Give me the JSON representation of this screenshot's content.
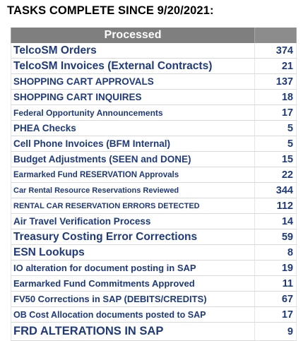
{
  "heading": "TASKS COMPLETE SINCE 9/20/2021:",
  "table": {
    "header": "Processed",
    "rows": [
      {
        "task": "TelcoSM Orders",
        "count": "374"
      },
      {
        "task": "TelcoSM Invoices (External Contracts)",
        "count": "21"
      },
      {
        "task": "SHOPPING CART APPROVALS",
        "count": "137"
      },
      {
        "task": "SHOPPING CART INQUIRES",
        "count": "18"
      },
      {
        "task": "Federal Opportunity Announcements",
        "count": "17"
      },
      {
        "task": "PHEA Checks",
        "count": "5"
      },
      {
        "task": "Cell Phone Invoices (BFM Internal)",
        "count": "5"
      },
      {
        "task": "Budget Adjustments (SEEN and DONE)",
        "count": "15"
      },
      {
        "task": "Earmarked Fund RESERVATION Approvals",
        "count": "22"
      },
      {
        "task": "Car Rental Resource Reservations Reviewed",
        "count": "344"
      },
      {
        "task": "RENTAL CAR RESERVATION ERRORS DETECTED",
        "count": "112"
      },
      {
        "task": "Air Travel Verification Process",
        "count": "14"
      },
      {
        "task": "Treasury Costing Error Corrections",
        "count": "59"
      },
      {
        "task": "ESN Lookups",
        "count": "8"
      },
      {
        "task": "IO alteration for document posting in SAP",
        "count": "19"
      },
      {
        "task": "Earmarked Fund Commitments Approved",
        "count": "11"
      },
      {
        "task": "FV50 Corrections in SAP (DEBITS/CREDITS)",
        "count": "67"
      },
      {
        "task": "OB Cost Allocation documents posted to SAP",
        "count": "17"
      },
      {
        "task": "FRD ALTERATIONS IN SAP",
        "count": "9"
      }
    ]
  },
  "colors": {
    "header_bg": "#7f7f7f",
    "header_text": "#ffffff",
    "row_text": "#1f3a7a"
  }
}
